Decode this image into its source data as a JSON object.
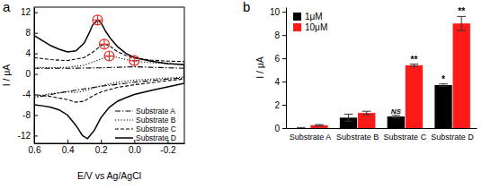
{
  "chart_data": [
    {
      "type": "line",
      "title": "a",
      "x_label": "E/V vs Ag/AgCl",
      "y_label": "I / μA",
      "xlim": [
        0.6,
        -0.3
      ],
      "xticks": [
        0.6,
        0.4,
        0.2,
        {
          "value": 0,
          "label": "0.0"
        },
        -0.2
      ],
      "ylim": [
        -13.5,
        13
      ],
      "yticks": [
        -12,
        -8,
        -4,
        0,
        4,
        8,
        12
      ],
      "legend": "lower-right",
      "series": [
        {
          "name": "Substrate A",
          "color": "#000000",
          "line_style": "dash-dot",
          "x": [
            0.6,
            0.4,
            0.2,
            0.1,
            0,
            -0.1,
            -0.2,
            -0.3,
            -0.3,
            -0.2,
            -0.1,
            0,
            0.2,
            0.4,
            0.5,
            0.6,
            0.6
          ],
          "values": [
            1.1,
            1.1,
            1.2,
            1.3,
            1.4,
            1.3,
            1.2,
            1.1,
            -0.8,
            -1,
            -1.3,
            -1.6,
            -2.4,
            -3.4,
            -4,
            -4.6,
            1.1
          ]
        },
        {
          "name": "Substrate B",
          "color": "#000000",
          "line_style": "dotted",
          "x": [
            0.6,
            0.5,
            0.4,
            0.3,
            0.2,
            0.15,
            0.1,
            0.05,
            0,
            -0.1,
            -0.2,
            -0.3,
            -0.3,
            -0.2,
            -0.1,
            0,
            0.1,
            0.2,
            0.3,
            0.35,
            0.4,
            0.5,
            0.6,
            0.6
          ],
          "values": [
            1.3,
            1.2,
            1.3,
            1.7,
            2.9,
            3.5,
            3.2,
            2.8,
            2.5,
            2.2,
            2,
            1.9,
            -0.6,
            -0.8,
            -1,
            -1.2,
            -1.6,
            -2.3,
            -3.3,
            -3.6,
            -3.5,
            -3.8,
            -4.5,
            1.3
          ]
        },
        {
          "name": "Substrate C",
          "color": "#000000",
          "line_style": "dashed",
          "x": [
            0.6,
            0.5,
            0.4,
            0.3,
            0.25,
            0.2,
            0.18,
            0.15,
            0.1,
            0.05,
            0,
            -0.1,
            -0.2,
            -0.3,
            -0.3,
            -0.2,
            -0.1,
            0,
            0.1,
            0.2,
            0.25,
            0.3,
            0.35,
            0.4,
            0.5,
            0.6,
            0.6
          ],
          "values": [
            3.2,
            2.8,
            2.6,
            3.2,
            4.2,
            5.5,
            5.8,
            5.5,
            4.3,
            3.6,
            3.1,
            2.7,
            2.5,
            2.4,
            -1,
            -1.3,
            -1.7,
            -2.1,
            -2.6,
            -3.5,
            -4.3,
            -5.3,
            -5.5,
            -5,
            -4.4,
            -4,
            3.2
          ]
        },
        {
          "name": "Substrate D",
          "color": "#000000",
          "line_style": "solid",
          "x": [
            0.6,
            0.55,
            0.5,
            0.45,
            0.4,
            0.35,
            0.3,
            0.27,
            0.25,
            0.22,
            0.2,
            0.17,
            0.14,
            0.1,
            0.05,
            0,
            -0.1,
            -0.2,
            -0.3,
            -0.3,
            -0.2,
            -0.1,
            0,
            0.05,
            0.1,
            0.15,
            0.2,
            0.24,
            0.28,
            0.31,
            0.35,
            0.4,
            0.45,
            0.5,
            0.55,
            0.6,
            0.6
          ],
          "values": [
            7.5,
            6.5,
            5.5,
            4.8,
            4.3,
            4.5,
            6,
            8,
            9.5,
            10.5,
            10,
            8.2,
            6.8,
            5.3,
            4,
            3.2,
            2.5,
            2,
            1.8,
            -1.8,
            -2.5,
            -3.2,
            -4,
            -4.6,
            -5.3,
            -6.5,
            -8.5,
            -11,
            -12.6,
            -12,
            -10,
            -8,
            -7,
            -6.5,
            -6.2,
            -6,
            7.5
          ]
        },
        {
          "type": "scatter",
          "marker": "circle-plus",
          "color": "#e0302a",
          "x": [
            0.22,
            0.18,
            0.15,
            0
          ],
          "values": [
            10.5,
            5.8,
            3.5,
            2.6
          ]
        }
      ]
    },
    {
      "type": "bar",
      "title": "b",
      "y_label": "I / μA",
      "categories": [
        "Substrate A",
        "Substrate B",
        "Substrate C",
        "Substrate D"
      ],
      "ylim": [
        0,
        10.4
      ],
      "yticks": [
        0,
        2,
        4,
        6,
        8,
        10
      ],
      "legend": "upper-left",
      "series": [
        {
          "name": "1μM",
          "color": "#000000",
          "values": [
            0.0,
            0.9,
            1.0,
            3.7
          ],
          "errors": [
            0.05,
            0.3,
            0.1,
            0.1
          ],
          "significance": [
            null,
            null,
            "NS",
            "*"
          ]
        },
        {
          "name": "10μM",
          "color": "#ff1a1a",
          "values": [
            0.25,
            1.3,
            5.4,
            9.0
          ],
          "errors": [
            0.05,
            0.15,
            0.1,
            0.6
          ],
          "significance": [
            null,
            null,
            "**",
            "**"
          ]
        }
      ]
    }
  ]
}
